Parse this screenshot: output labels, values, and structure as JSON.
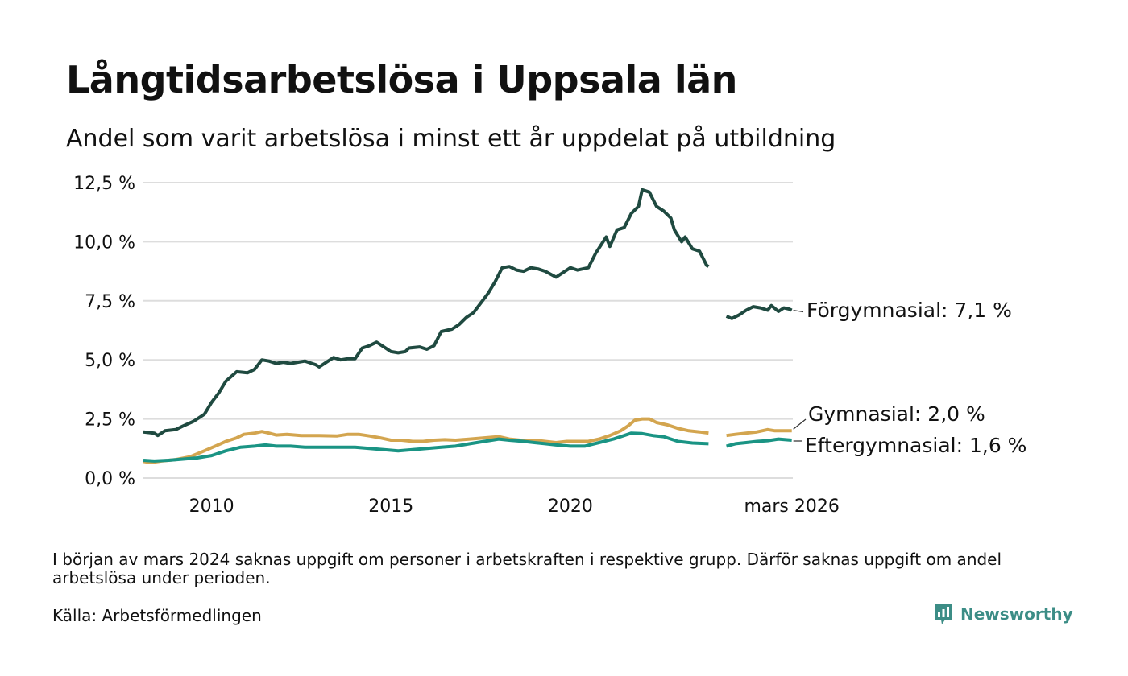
{
  "header": {
    "title": "Långtidsarbetslösa i Uppsala län",
    "subtitle": "Andel som varit arbetslösa i minst ett år uppdelat på utbildning"
  },
  "footer": {
    "note": "I början av mars 2024 saknas uppgift om personer i arbetskraften i respektive grupp. Därför saknas uppgift om andel arbetslösa under perioden.",
    "source": "Källa: Arbetsförmedlingen",
    "brand": "Newsworthy"
  },
  "colors": {
    "forgymnasial": "#1f4a40",
    "gymnasial": "#d3a54f",
    "eftergymnasial": "#1a9484",
    "grid": "#dddddd",
    "brand": "#3c8d86"
  },
  "chart_data": {
    "type": "line",
    "title": "Långtidsarbetslösa i Uppsala län",
    "subtitle": "Andel som varit arbetslösa i minst ett år uppdelat på utbildning",
    "x_unit": "year",
    "xlim": [
      2008.1,
      2026.2
    ],
    "ylim": [
      0,
      12.5
    ],
    "yticks": [
      0,
      2.5,
      5,
      7.5,
      10,
      12.5
    ],
    "ytick_labels": [
      "0,0 %",
      "2,5 %",
      "5,0 %",
      "7,5 %",
      "10,0 %",
      "12,5 %"
    ],
    "xticks": [
      2010,
      2015,
      2020,
      2026.17
    ],
    "xtick_labels": [
      "2010",
      "2015",
      "2020",
      "mars 2026"
    ],
    "grid": true,
    "gap": [
      2023.7,
      2024.25
    ],
    "series": [
      {
        "name": "Förgymnasial",
        "end_label": "Förgymnasial: 7,1 %",
        "color_key": "forgymnasial",
        "points": [
          [
            2008.1,
            1.95
          ],
          [
            2008.4,
            1.9
          ],
          [
            2008.5,
            1.8
          ],
          [
            2008.7,
            2.0
          ],
          [
            2009.0,
            2.05
          ],
          [
            2009.2,
            2.2
          ],
          [
            2009.5,
            2.4
          ],
          [
            2009.8,
            2.7
          ],
          [
            2010.0,
            3.2
          ],
          [
            2010.2,
            3.6
          ],
          [
            2010.4,
            4.1
          ],
          [
            2010.7,
            4.5
          ],
          [
            2011.0,
            4.45
          ],
          [
            2011.2,
            4.6
          ],
          [
            2011.4,
            5.0
          ],
          [
            2011.6,
            4.95
          ],
          [
            2011.8,
            4.85
          ],
          [
            2012.0,
            4.9
          ],
          [
            2012.2,
            4.85
          ],
          [
            2012.4,
            4.9
          ],
          [
            2012.6,
            4.95
          ],
          [
            2012.9,
            4.8
          ],
          [
            2013.0,
            4.7
          ],
          [
            2013.2,
            4.9
          ],
          [
            2013.4,
            5.1
          ],
          [
            2013.6,
            5.0
          ],
          [
            2013.8,
            5.05
          ],
          [
            2014.0,
            5.05
          ],
          [
            2014.2,
            5.5
          ],
          [
            2014.4,
            5.6
          ],
          [
            2014.6,
            5.75
          ],
          [
            2014.8,
            5.55
          ],
          [
            2015.0,
            5.35
          ],
          [
            2015.2,
            5.3
          ],
          [
            2015.4,
            5.35
          ],
          [
            2015.5,
            5.5
          ],
          [
            2015.8,
            5.55
          ],
          [
            2016.0,
            5.45
          ],
          [
            2016.2,
            5.6
          ],
          [
            2016.4,
            6.2
          ],
          [
            2016.7,
            6.3
          ],
          [
            2016.9,
            6.5
          ],
          [
            2017.1,
            6.8
          ],
          [
            2017.3,
            7.0
          ],
          [
            2017.5,
            7.4
          ],
          [
            2017.7,
            7.8
          ],
          [
            2017.9,
            8.3
          ],
          [
            2018.1,
            8.9
          ],
          [
            2018.3,
            8.95
          ],
          [
            2018.5,
            8.8
          ],
          [
            2018.7,
            8.75
          ],
          [
            2018.9,
            8.9
          ],
          [
            2019.1,
            8.85
          ],
          [
            2019.3,
            8.75
          ],
          [
            2019.6,
            8.5
          ],
          [
            2019.8,
            8.7
          ],
          [
            2020.0,
            8.9
          ],
          [
            2020.2,
            8.8
          ],
          [
            2020.5,
            8.9
          ],
          [
            2020.7,
            9.5
          ],
          [
            2021.0,
            10.2
          ],
          [
            2021.1,
            9.8
          ],
          [
            2021.3,
            10.5
          ],
          [
            2021.5,
            10.6
          ],
          [
            2021.7,
            11.2
          ],
          [
            2021.9,
            11.5
          ],
          [
            2022.0,
            12.2
          ],
          [
            2022.2,
            12.1
          ],
          [
            2022.4,
            11.5
          ],
          [
            2022.6,
            11.3
          ],
          [
            2022.8,
            11.0
          ],
          [
            2022.9,
            10.5
          ],
          [
            2023.1,
            10.0
          ],
          [
            2023.2,
            10.2
          ],
          [
            2023.4,
            9.7
          ],
          [
            2023.6,
            9.6
          ],
          [
            2023.8,
            9.0
          ],
          [
            2023.85,
            8.95
          ],
          null,
          [
            2024.35,
            6.85
          ],
          [
            2024.5,
            6.75
          ],
          [
            2024.7,
            6.9
          ],
          [
            2024.9,
            7.1
          ],
          [
            2025.1,
            7.25
          ],
          [
            2025.3,
            7.2
          ],
          [
            2025.5,
            7.1
          ],
          [
            2025.6,
            7.3
          ],
          [
            2025.8,
            7.05
          ],
          [
            2025.95,
            7.2
          ],
          [
            2026.1,
            7.15
          ],
          [
            2026.17,
            7.1
          ]
        ]
      },
      {
        "name": "Gymnasial",
        "end_label": "Gymnasial: 2,0 %",
        "color_key": "gymnasial",
        "points": [
          [
            2008.1,
            0.7
          ],
          [
            2008.3,
            0.65
          ],
          [
            2008.6,
            0.72
          ],
          [
            2009.0,
            0.78
          ],
          [
            2009.4,
            0.9
          ],
          [
            2009.8,
            1.15
          ],
          [
            2010.1,
            1.35
          ],
          [
            2010.4,
            1.55
          ],
          [
            2010.7,
            1.7
          ],
          [
            2010.9,
            1.85
          ],
          [
            2011.2,
            1.9
          ],
          [
            2011.4,
            1.97
          ],
          [
            2011.6,
            1.9
          ],
          [
            2011.8,
            1.82
          ],
          [
            2012.1,
            1.85
          ],
          [
            2012.5,
            1.8
          ],
          [
            2013.0,
            1.8
          ],
          [
            2013.5,
            1.78
          ],
          [
            2013.8,
            1.85
          ],
          [
            2014.1,
            1.85
          ],
          [
            2014.4,
            1.78
          ],
          [
            2014.7,
            1.7
          ],
          [
            2015.0,
            1.6
          ],
          [
            2015.3,
            1.6
          ],
          [
            2015.6,
            1.55
          ],
          [
            2015.9,
            1.55
          ],
          [
            2016.2,
            1.6
          ],
          [
            2016.5,
            1.62
          ],
          [
            2016.8,
            1.6
          ],
          [
            2017.2,
            1.65
          ],
          [
            2017.6,
            1.7
          ],
          [
            2018.0,
            1.75
          ],
          [
            2018.3,
            1.65
          ],
          [
            2018.6,
            1.6
          ],
          [
            2019.0,
            1.6
          ],
          [
            2019.3,
            1.55
          ],
          [
            2019.6,
            1.5
          ],
          [
            2019.9,
            1.55
          ],
          [
            2020.2,
            1.55
          ],
          [
            2020.5,
            1.55
          ],
          [
            2020.8,
            1.65
          ],
          [
            2021.1,
            1.8
          ],
          [
            2021.4,
            2.0
          ],
          [
            2021.6,
            2.2
          ],
          [
            2021.8,
            2.45
          ],
          [
            2022.0,
            2.5
          ],
          [
            2022.2,
            2.5
          ],
          [
            2022.4,
            2.35
          ],
          [
            2022.7,
            2.25
          ],
          [
            2023.0,
            2.1
          ],
          [
            2023.3,
            2.0
          ],
          [
            2023.6,
            1.95
          ],
          [
            2023.85,
            1.9
          ],
          null,
          [
            2024.35,
            1.8
          ],
          [
            2024.6,
            1.85
          ],
          [
            2024.9,
            1.9
          ],
          [
            2025.2,
            1.95
          ],
          [
            2025.5,
            2.05
          ],
          [
            2025.7,
            2.0
          ],
          [
            2026.0,
            2.0
          ],
          [
            2026.17,
            2.0
          ]
        ]
      },
      {
        "name": "Eftergymnasial",
        "end_label": "Eftergymnasial: 1,6 %",
        "color_key": "eftergymnasial",
        "points": [
          [
            2008.1,
            0.75
          ],
          [
            2008.4,
            0.72
          ],
          [
            2008.8,
            0.75
          ],
          [
            2009.2,
            0.8
          ],
          [
            2009.6,
            0.85
          ],
          [
            2010.0,
            0.95
          ],
          [
            2010.4,
            1.15
          ],
          [
            2010.8,
            1.3
          ],
          [
            2011.2,
            1.35
          ],
          [
            2011.5,
            1.4
          ],
          [
            2011.8,
            1.35
          ],
          [
            2012.2,
            1.35
          ],
          [
            2012.6,
            1.3
          ],
          [
            2013.0,
            1.3
          ],
          [
            2013.5,
            1.3
          ],
          [
            2014.0,
            1.3
          ],
          [
            2014.4,
            1.25
          ],
          [
            2014.8,
            1.2
          ],
          [
            2015.2,
            1.15
          ],
          [
            2015.6,
            1.2
          ],
          [
            2016.0,
            1.25
          ],
          [
            2016.4,
            1.3
          ],
          [
            2016.8,
            1.35
          ],
          [
            2017.2,
            1.45
          ],
          [
            2017.6,
            1.55
          ],
          [
            2018.0,
            1.65
          ],
          [
            2018.3,
            1.6
          ],
          [
            2018.7,
            1.55
          ],
          [
            2019.0,
            1.5
          ],
          [
            2019.3,
            1.45
          ],
          [
            2019.6,
            1.4
          ],
          [
            2020.0,
            1.35
          ],
          [
            2020.4,
            1.35
          ],
          [
            2020.8,
            1.5
          ],
          [
            2021.2,
            1.65
          ],
          [
            2021.5,
            1.8
          ],
          [
            2021.7,
            1.9
          ],
          [
            2022.0,
            1.88
          ],
          [
            2022.3,
            1.8
          ],
          [
            2022.6,
            1.75
          ],
          [
            2023.0,
            1.55
          ],
          [
            2023.4,
            1.48
          ],
          [
            2023.85,
            1.45
          ],
          null,
          [
            2024.35,
            1.35
          ],
          [
            2024.6,
            1.45
          ],
          [
            2024.9,
            1.5
          ],
          [
            2025.2,
            1.55
          ],
          [
            2025.5,
            1.58
          ],
          [
            2025.8,
            1.65
          ],
          [
            2026.17,
            1.6
          ]
        ]
      }
    ]
  }
}
